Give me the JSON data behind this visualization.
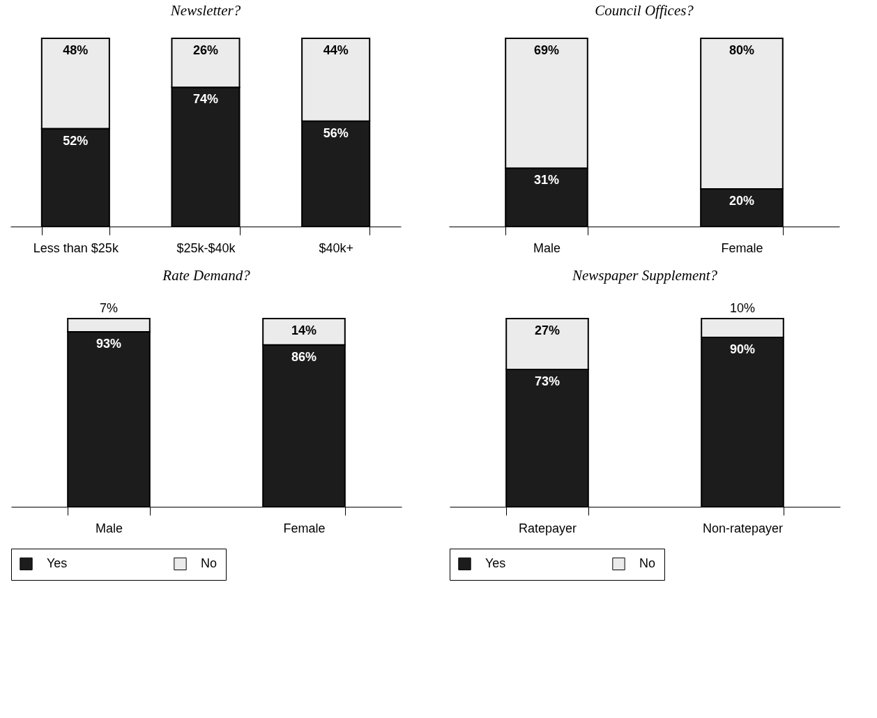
{
  "chart_data": [
    {
      "type": "bar",
      "title": "Newsletter?",
      "categories": [
        "Less than $25k",
        "$25k-$40k",
        "$40k+"
      ],
      "stacked": true,
      "ylim": [
        0,
        100
      ],
      "tick_labels": "x",
      "legend": false,
      "series": [
        {
          "color": "#1c1c1c",
          "values": [
            52,
            74,
            56
          ],
          "value_labels": [
            "52%",
            "74%",
            "56%"
          ]
        },
        {
          "color": "#ebebeb",
          "values": [
            48,
            26,
            44
          ],
          "value_labels": [
            "48%",
            "26%",
            "44%"
          ]
        }
      ]
    },
    {
      "type": "bar",
      "title": "Council Offices?",
      "categories": [
        "Male",
        "Female"
      ],
      "stacked": true,
      "ylim": [
        0,
        100
      ],
      "tick_labels": "x",
      "legend": false,
      "series": [
        {
          "color": "#1c1c1c",
          "values": [
            31,
            20
          ],
          "value_labels": [
            "31%",
            "20%"
          ]
        },
        {
          "color": "#ebebeb",
          "values": [
            69,
            80
          ],
          "value_labels": [
            "69%",
            "80%"
          ]
        }
      ]
    },
    {
      "type": "bar",
      "title": "Rate Demand?",
      "categories": [
        "Male",
        "Female"
      ],
      "stacked": true,
      "ylim": [
        0,
        100
      ],
      "tick_labels": "x",
      "legend": "bottom",
      "series": [
        {
          "name": "Yes",
          "color": "#1c1c1c",
          "values": [
            93,
            86
          ],
          "value_labels": [
            "93%",
            "86%"
          ]
        },
        {
          "name": "No",
          "color": "#ebebeb",
          "values": [
            7,
            14
          ],
          "value_labels": [
            "7%",
            "14%"
          ]
        }
      ]
    },
    {
      "type": "bar",
      "title": "Newspaper Supplement?",
      "categories": [
        "Ratepayer",
        "Non-ratepayer"
      ],
      "stacked": true,
      "ylim": [
        0,
        100
      ],
      "tick_labels": "x",
      "legend": "bottom",
      "series": [
        {
          "name": "Yes",
          "color": "#1c1c1c",
          "values": [
            73,
            90
          ],
          "value_labels": [
            "73%",
            "90%"
          ]
        },
        {
          "name": "No",
          "color": "#ebebeb",
          "values": [
            27,
            10
          ],
          "value_labels": [
            "27%",
            "10%"
          ]
        }
      ]
    }
  ]
}
